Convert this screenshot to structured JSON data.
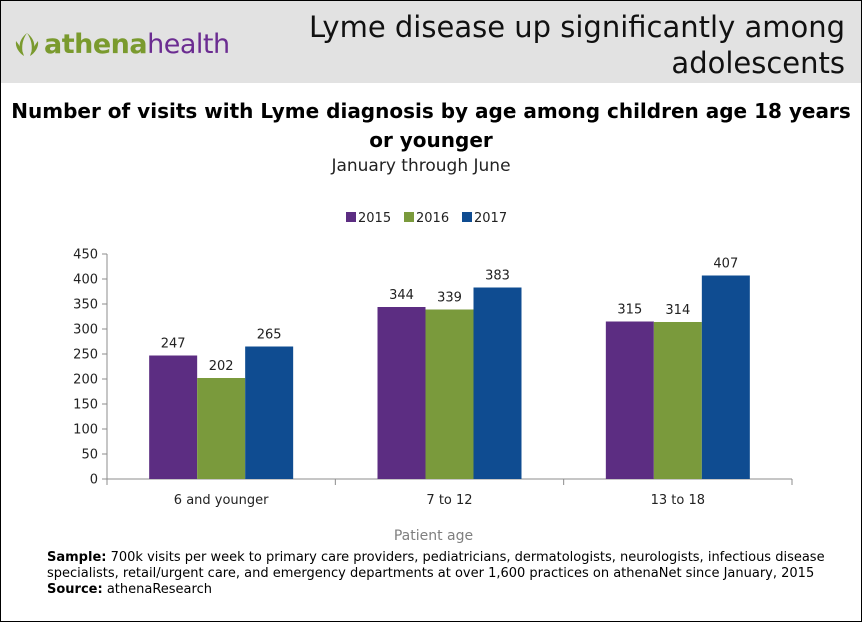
{
  "header": {
    "logo_text_part1": "athena",
    "logo_text_part2": "health",
    "headline": "Lyme disease up significantly among adolescents"
  },
  "chart_data": {
    "type": "bar",
    "title": "Number of visits with Lyme diagnosis by age among children age 18 years or younger",
    "subtitle": "January through June",
    "xlabel": "Patient age",
    "ylabel": "",
    "categories": [
      "6 and younger",
      "7 to 12",
      "13 to 18"
    ],
    "series": [
      {
        "name": "2015",
        "values": [
          247,
          344,
          315
        ],
        "color": "#5c2d82"
      },
      {
        "name": "2016",
        "values": [
          202,
          339,
          314
        ],
        "color": "#7a9a3c"
      },
      {
        "name": "2017",
        "values": [
          265,
          383,
          407
        ],
        "color": "#0f4c91"
      }
    ],
    "ylim": [
      0,
      450
    ],
    "yticks": [
      0,
      50,
      100,
      150,
      200,
      250,
      300,
      350,
      400,
      450
    ],
    "grid": false,
    "legend_position": "top-center",
    "data_labels": true
  },
  "notes": {
    "sample_label": "Sample:",
    "sample_text": " 700k visits per week to primary care providers, pediatricians, dermatologists, neurologists, infectious disease specialists, retail/urgent care, and emergency departments at over 1,600 practices on athenaNet since January, 2015",
    "source_label": "Source:",
    "source_text": " athenaResearch"
  }
}
